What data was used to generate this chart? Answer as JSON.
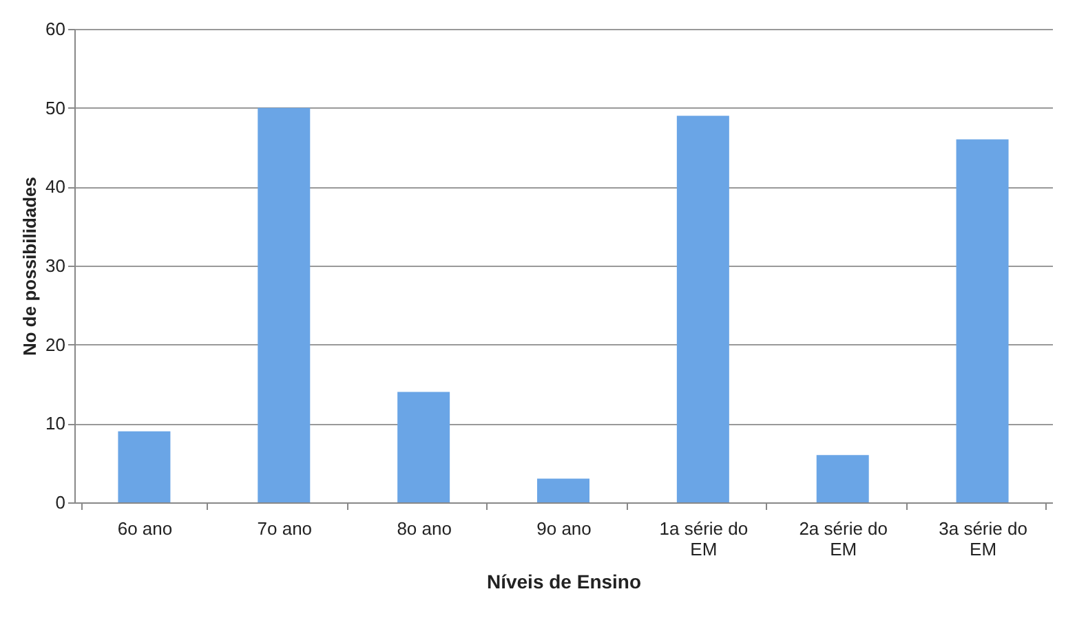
{
  "chart_data": {
    "type": "bar",
    "xlabel": "Níveis de Ensino",
    "ylabel": "No de possibilidades",
    "categories": [
      "6o ano",
      "7o ano",
      "8o ano",
      "9o ano",
      "1a série do EM",
      "2a série do EM",
      "3a série do EM"
    ],
    "values": [
      9,
      50,
      14,
      3,
      49,
      6,
      46
    ],
    "color": "#6aa5e6",
    "ylim": [
      0,
      60
    ],
    "yticks": [
      0,
      10,
      20,
      30,
      40,
      50,
      60
    ],
    "grid": "y"
  }
}
